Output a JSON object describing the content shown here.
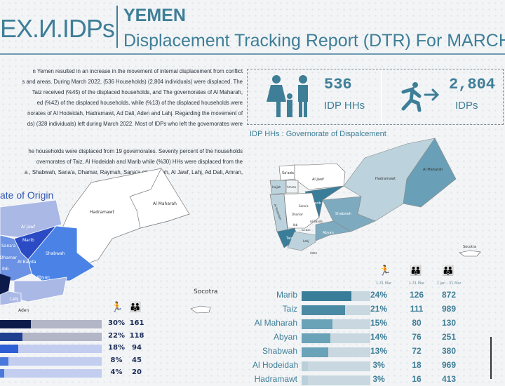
{
  "header": {
    "logo": "EX.И.IDPs",
    "country": "YEMEN",
    "title": "Displacement Tracking Report (DTR) For MARCH"
  },
  "intro": {
    "lines": [
      "n Yemen resulted in an increase in the movement of internal displacement from conflict",
      "s and areas. During March 2022, (536 Households) (2,804 individuals) were displaced. The",
      "Taiz received (%45) of the displaced households, and The governorates of Al Maharah,",
      "ed (%42) of the displaced households, while (%13) of the displaced households were",
      "norates of Al Hodeidah, Hadramawt, Ad Dali, Aden and Lahj. Regarding the movement of",
      "ds) (328 individuals) left during March 2022. Most of IDPs who left the governorates were"
    ]
  },
  "origin": {
    "lines": [
      "he households were displaced from 19 governorates. Seventy percent of the households",
      "overnorates of Taiz, Al Hodeidah and Marib while (%30) HHs were displaced from the",
      "a , Shabwah, Sana'a, Dhamar, Raymah, Sana'a city, Hajjah, Al Jawf, Lahj, Ad Dali, Amran,"
    ],
    "title": "ate of Origin",
    "map_labels": {
      "al_jawf": "Al Jawf",
      "marib": "Marib",
      "sanaa": "Sana'a",
      "dhamar": "Dhamar",
      "al_bayda": "Al Bayda",
      "shabwah": "Shabwah",
      "abyan": "Abyan",
      "aden": "Aden",
      "hadramawt": "Hadramawt",
      "al_maharah": "Al Maharah",
      "socotra": "Socotra",
      "ibb": "Ibb",
      "lahj": "Lahj"
    },
    "rows": [
      {
        "pct": "30%",
        "value": 30,
        "hh": "161",
        "color": "#0d1b4a",
        "bg": "#b2b6c6"
      },
      {
        "pct": "22%",
        "value": 22,
        "hh": "118",
        "color": "#1f3f8f",
        "bg": "#b2b6c6"
      },
      {
        "pct": "18%",
        "value": 18,
        "hh": "94",
        "color": "#2e5fd6",
        "bg": "#c2cdf0"
      },
      {
        "pct": "8%",
        "value": 8,
        "hh": "45",
        "color": "#4a78db",
        "bg": "#c2cdf0"
      },
      {
        "pct": "4%",
        "value": 4,
        "hh": "20",
        "color": "#4a78db",
        "bg": "#c2cdf0"
      }
    ]
  },
  "stats": {
    "hh_value": "536",
    "hh_label": "IDP HHs",
    "idp_value": "2,804",
    "idp_label": "IDPs"
  },
  "displacement": {
    "title": "IDP HHs : Governorate of Dispalcement",
    "col_headers": [
      "1-31 Mar",
      "1-31 Mar",
      "1 Jan - 31 Mar"
    ],
    "map_labels": {
      "saada": "Sa'ada",
      "al_jawf": "Al Jawf",
      "hajjah": "Hajjah",
      "amran": "Amran",
      "al_hodeidah": "Al Hodeidah",
      "marib": "Marib",
      "sanaa": "Sana'a",
      "dhamar": "Dhamar",
      "al_bayda": "Al Bayda",
      "ibb": "Ibb",
      "ad_dali": "Ad Dali",
      "taiz": "Taiz",
      "lahj": "Lahj",
      "aden": "Aden",
      "abyan": "Abyan",
      "shabwah": "Shabwah",
      "hadramawt": "Hadramawt",
      "al_maharah": "Al Maharah",
      "socotra": "Socotra"
    },
    "rows": [
      {
        "name": "Marib",
        "pct": "24%",
        "value": 24,
        "hh": "126",
        "total": "872",
        "color": "#3a7d99"
      },
      {
        "name": "Taiz",
        "pct": "21%",
        "value": 21,
        "hh": "111",
        "total": "989",
        "color": "#4a8aa4"
      },
      {
        "name": "Al Maharah",
        "pct": "15%",
        "value": 15,
        "hh": "80",
        "total": "130",
        "color": "#6aa2b8"
      },
      {
        "name": "Abyan",
        "pct": "14%",
        "value": 14,
        "hh": "76",
        "total": "251",
        "color": "#6aa2b8"
      },
      {
        "name": "Shabwah",
        "pct": "13%",
        "value": 13,
        "hh": "72",
        "total": "380",
        "color": "#6aa2b8"
      },
      {
        "name": "Al Hodeidah",
        "pct": "3%",
        "value": 3,
        "hh": "18",
        "total": "969",
        "color": "#b9d0da"
      },
      {
        "name": "Hadramawt",
        "pct": "3%",
        "value": 3,
        "hh": "16",
        "total": "413",
        "color": "#b9d0da"
      }
    ]
  }
}
